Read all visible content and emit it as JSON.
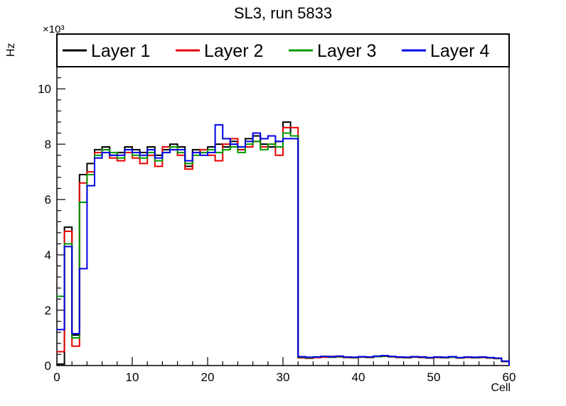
{
  "window": {
    "title": "SL3, run 5833"
  },
  "chart_data": {
    "type": "line",
    "style": "histogram-step",
    "title": "SL3, run 5833",
    "xlabel": "Cell",
    "ylabel": "Hz",
    "y_multiplier": "×10³",
    "xlim": [
      0,
      60
    ],
    "ylim": [
      0,
      11.8
    ],
    "x_major_ticks": [
      0,
      10,
      20,
      30,
      40,
      50,
      60
    ],
    "y_major_ticks": [
      0,
      2,
      4,
      6,
      8,
      10
    ],
    "x_minor_step": 2,
    "y_minor_step": 0.4,
    "grid": false,
    "legend": {
      "position": "top",
      "border": true
    },
    "bin_width": 1,
    "series": [
      {
        "name": "Layer 1",
        "color": "#000000",
        "values": [
          0.05,
          5.0,
          1.1,
          6.9,
          7.3,
          7.8,
          7.9,
          7.6,
          7.7,
          7.9,
          7.8,
          7.7,
          7.9,
          7.6,
          7.8,
          8.0,
          7.9,
          7.2,
          7.8,
          7.7,
          7.9,
          8.0,
          7.9,
          8.1,
          7.8,
          8.2,
          8.3,
          8.0,
          7.9,
          8.1,
          8.8,
          8.3,
          0.3,
          0.28,
          0.3,
          0.32,
          0.3,
          0.33,
          0.3,
          0.29,
          0.31,
          0.3,
          0.33,
          0.35,
          0.32,
          0.3,
          0.29,
          0.31,
          0.3,
          0.28,
          0.3,
          0.29,
          0.31,
          0.28,
          0.3,
          0.29,
          0.3,
          0.28,
          0.26,
          0.15
        ]
      },
      {
        "name": "Layer 2",
        "color": "#e60000",
        "values": [
          0.5,
          4.85,
          0.7,
          6.6,
          7.0,
          7.7,
          7.8,
          7.5,
          7.4,
          7.7,
          7.5,
          7.3,
          7.6,
          7.2,
          7.9,
          7.8,
          7.6,
          7.1,
          7.7,
          7.8,
          7.6,
          7.4,
          8.0,
          8.2,
          7.8,
          7.9,
          8.1,
          7.9,
          8.0,
          7.6,
          8.6,
          8.6,
          0.28,
          0.26,
          0.29,
          0.3,
          0.33,
          0.31,
          0.29,
          0.28,
          0.3,
          0.29,
          0.32,
          0.33,
          0.31,
          0.29,
          0.28,
          0.3,
          0.29,
          0.27,
          0.29,
          0.28,
          0.3,
          0.27,
          0.29,
          0.28,
          0.29,
          0.27,
          0.25,
          0.14
        ]
      },
      {
        "name": "Layer 3",
        "color": "#009900",
        "values": [
          2.5,
          4.4,
          1.0,
          5.9,
          6.9,
          7.6,
          7.8,
          7.7,
          7.5,
          7.8,
          7.6,
          7.5,
          7.7,
          7.4,
          7.7,
          7.9,
          7.7,
          7.3,
          7.6,
          7.7,
          7.8,
          7.7,
          7.8,
          7.9,
          7.7,
          8.0,
          8.1,
          7.8,
          8.0,
          7.9,
          8.4,
          8.3,
          0.3,
          0.28,
          0.31,
          0.33,
          0.31,
          0.32,
          0.3,
          0.29,
          0.31,
          0.3,
          0.32,
          0.34,
          0.32,
          0.3,
          0.29,
          0.31,
          0.3,
          0.28,
          0.3,
          0.29,
          0.3,
          0.28,
          0.3,
          0.29,
          0.3,
          0.28,
          0.26,
          0.15
        ]
      },
      {
        "name": "Layer 4",
        "color": "#0000e6",
        "values": [
          1.3,
          4.3,
          1.15,
          3.5,
          6.5,
          7.5,
          7.7,
          7.6,
          7.6,
          7.8,
          7.7,
          7.6,
          7.8,
          7.5,
          7.7,
          7.8,
          7.8,
          7.4,
          7.7,
          7.6,
          7.7,
          8.7,
          8.2,
          8.0,
          7.9,
          8.1,
          8.4,
          8.2,
          8.3,
          8.1,
          8.2,
          8.2,
          0.32,
          0.3,
          0.31,
          0.33,
          0.32,
          0.34,
          0.31,
          0.3,
          0.32,
          0.31,
          0.34,
          0.36,
          0.33,
          0.31,
          0.3,
          0.32,
          0.31,
          0.29,
          0.31,
          0.3,
          0.32,
          0.29,
          0.31,
          0.3,
          0.31,
          0.29,
          0.27,
          0.16
        ]
      }
    ]
  }
}
